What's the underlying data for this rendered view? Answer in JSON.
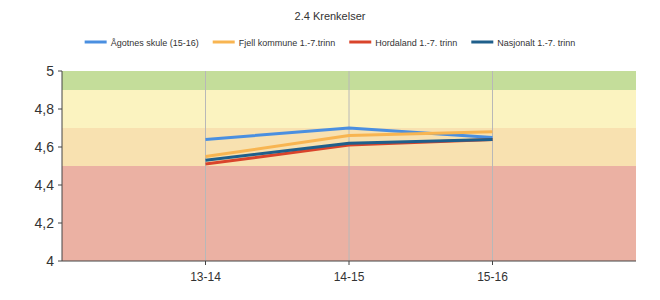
{
  "chart_data": {
    "type": "line",
    "title": "2.4 Krenkelser",
    "categories": [
      "13-14",
      "14-15",
      "15-16"
    ],
    "series": [
      {
        "name": "Ågotnes skule (15-16)",
        "color": "#4a8fe0",
        "values": [
          4.64,
          4.7,
          4.65
        ]
      },
      {
        "name": "Fjell kommune 1.-7.trinn",
        "color": "#f8b551",
        "values": [
          4.55,
          4.66,
          4.68
        ]
      },
      {
        "name": "Hordaland 1.-7. trinn",
        "color": "#d9442b",
        "values": [
          4.51,
          4.61,
          4.64
        ]
      },
      {
        "name": "Nasjonalt 1.-7. trinn",
        "color": "#1f5f8b",
        "values": [
          4.53,
          4.62,
          4.64
        ]
      }
    ],
    "bands": [
      {
        "from": 4,
        "to": 4.5,
        "color": "#ebb1a3"
      },
      {
        "from": 4.5,
        "to": 4.7,
        "color": "#f8e1b0"
      },
      {
        "from": 4.7,
        "to": 4.9,
        "color": "#fbf3c0"
      },
      {
        "from": 4.9,
        "to": 5,
        "color": "#c4dd9a"
      }
    ],
    "ylim": [
      4,
      5
    ],
    "yticks": [
      {
        "value": 4,
        "label": "4"
      },
      {
        "value": 4.2,
        "label": "4,2"
      },
      {
        "value": 4.4,
        "label": "4,4"
      },
      {
        "value": 4.6,
        "label": "4,6"
      },
      {
        "value": 4.8,
        "label": "4,8"
      },
      {
        "value": 5,
        "label": "5"
      }
    ],
    "grid": true,
    "legend": "top"
  }
}
